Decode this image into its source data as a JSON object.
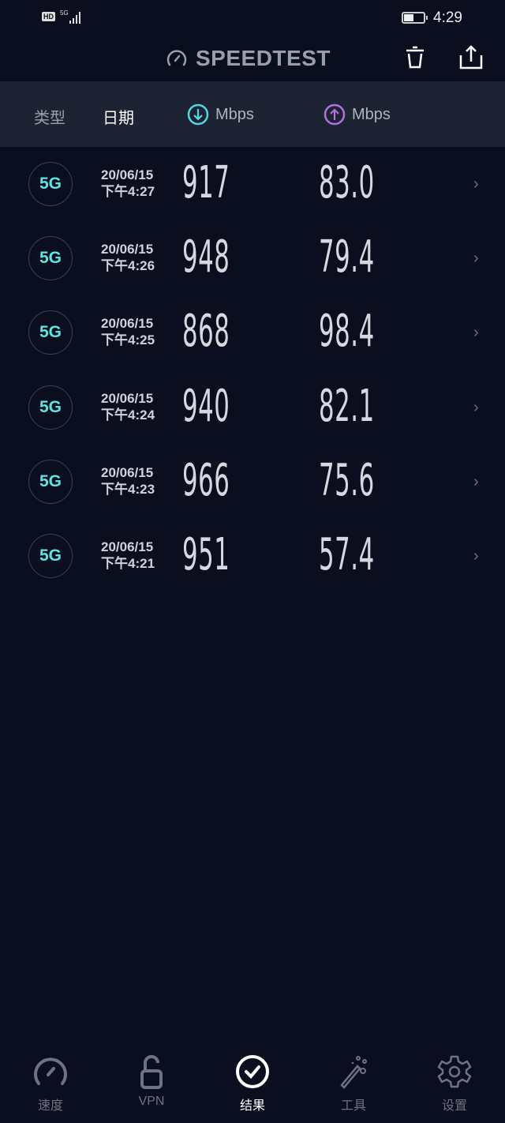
{
  "status_bar": {
    "hd": "HD",
    "network": "5G",
    "time": "4:29",
    "battery_level": 0.4
  },
  "header": {
    "title": "SPEEDTEST",
    "icons": [
      "speedometer-icon",
      "trash-icon",
      "share-icon"
    ]
  },
  "columns": {
    "type": "类型",
    "date": "日期",
    "download_unit": "Mbps",
    "upload_unit": "Mbps",
    "download_color": "#4fd8de",
    "upload_color": "#b070e0"
  },
  "results": [
    {
      "type": "5G",
      "date": "20/06/15",
      "time": "下午4:27",
      "download": "917",
      "upload": "83.0"
    },
    {
      "type": "5G",
      "date": "20/06/15",
      "time": "下午4:26",
      "download": "948",
      "upload": "79.4"
    },
    {
      "type": "5G",
      "date": "20/06/15",
      "time": "下午4:25",
      "download": "868",
      "upload": "98.4"
    },
    {
      "type": "5G",
      "date": "20/06/15",
      "time": "下午4:24",
      "download": "940",
      "upload": "82.1"
    },
    {
      "type": "5G",
      "date": "20/06/15",
      "time": "下午4:23",
      "download": "966",
      "upload": "75.6"
    },
    {
      "type": "5G",
      "date": "20/06/15",
      "time": "下午4:21",
      "download": "951",
      "upload": "57.4"
    }
  ],
  "nav": [
    {
      "label": "速度"
    },
    {
      "label": "VPN"
    },
    {
      "label": "结果",
      "active": true
    },
    {
      "label": "工具"
    },
    {
      "label": "设置"
    }
  ]
}
